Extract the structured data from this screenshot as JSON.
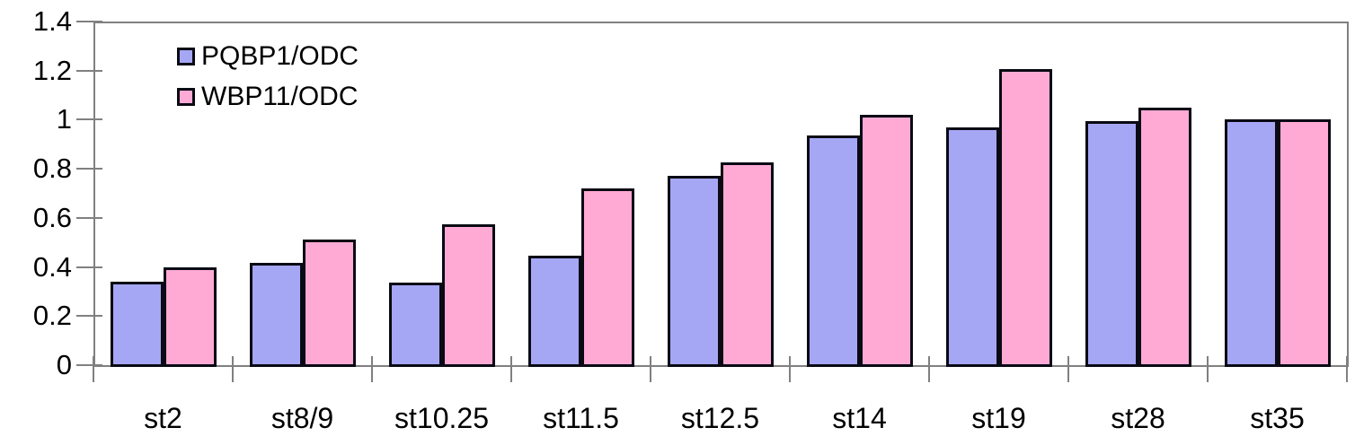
{
  "chart_data": {
    "type": "bar",
    "title": "",
    "xlabel": "",
    "ylabel": "",
    "categories": [
      "st2",
      "st8/9",
      "st10.25",
      "st11.5",
      "st12.5",
      "st14",
      "st19",
      "st28",
      "st35"
    ],
    "series": [
      {
        "name": "PQBP1/ODC",
        "color": "#a5a7f5",
        "values": [
          0.34,
          0.415,
          0.335,
          0.445,
          0.77,
          0.935,
          0.97,
          0.995,
          1.0
        ]
      },
      {
        "name": "WBP11/ODC",
        "color": "#ffaad5",
        "values": [
          0.4,
          0.51,
          0.575,
          0.72,
          0.825,
          1.02,
          1.205,
          1.05,
          1.0
        ]
      }
    ],
    "ylim": [
      0,
      1.4
    ],
    "yticks": [
      0,
      0.2,
      0.4,
      0.6,
      0.8,
      1,
      1.2,
      1.4
    ],
    "ytick_labels": [
      "0",
      "0.2",
      "0.4",
      "0.6",
      "0.8",
      "1",
      "1.2",
      "1.4"
    ],
    "legend_position": "top-left-inside",
    "grid": "plot-frame-only",
    "colors": {
      "axis": "#808080",
      "bar_outline": "#0a0a14",
      "text": "#000000",
      "background": "#ffffff"
    }
  }
}
